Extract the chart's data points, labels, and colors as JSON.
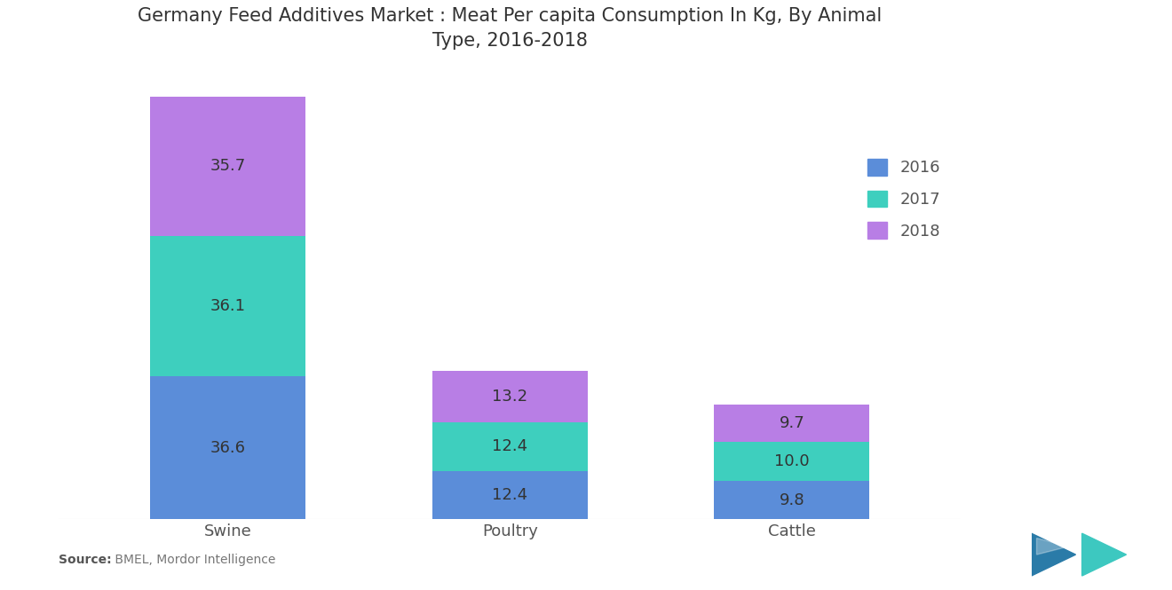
{
  "title": "Germany Feed Additives Market : Meat Per capita Consumption In Kg, By Animal\nType, 2016-2018",
  "categories": [
    "Swine",
    "Poultry",
    "Cattle"
  ],
  "years": [
    "2016",
    "2017",
    "2018"
  ],
  "values": {
    "2016": [
      36.6,
      12.4,
      9.8
    ],
    "2017": [
      36.1,
      12.4,
      10.0
    ],
    "2018": [
      35.7,
      13.2,
      9.7
    ]
  },
  "colors": {
    "2016": "#5B8DD9",
    "2017": "#3ECFBE",
    "2018": "#B87EE5"
  },
  "bar_width": 0.55,
  "source_bold": "Source:",
  "source_rest": " BMEL, Mordor Intelligence",
  "background_color": "#FFFFFF",
  "title_fontsize": 15,
  "label_fontsize": 13,
  "tick_fontsize": 13,
  "legend_fontsize": 13,
  "text_color": "#555555",
  "label_color": "#333333",
  "ylim": [
    0,
    115
  ]
}
